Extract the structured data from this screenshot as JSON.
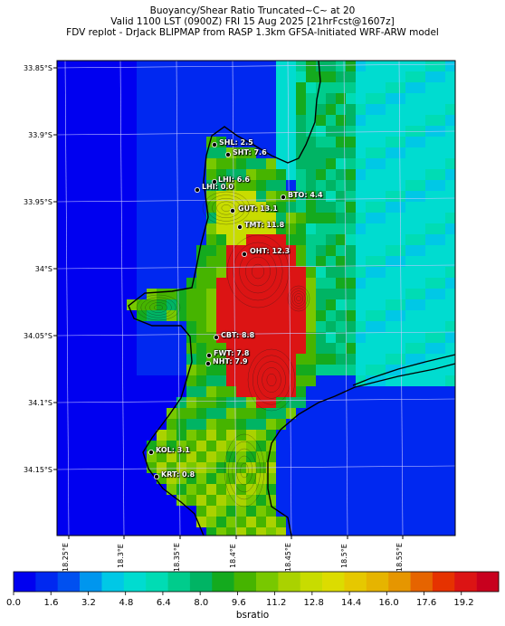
{
  "header": {
    "line1": "Buoyancy/Shear Ratio Truncated~C~    at 20",
    "line2": "Valid 1100 LST (0900Z) FRI 15 Aug 2025 [21hrFcst@1607z]",
    "line3": "FDV replot - DrJack BLIPMAP from RASP 1.3km GFSA-Initiated WRF-ARW model"
  },
  "axes": {
    "lat_ticks": [
      "33.85°S",
      "33.9°S",
      "33.95°S",
      "34°S",
      "34.05°S",
      "34.1°S",
      "34.15°S"
    ],
    "lon_ticks": [
      "18.25°E",
      "18.3°E",
      "18.35°E",
      "18.4°E",
      "18.45°E",
      "18.5°E",
      "18.55°E"
    ],
    "grid": true
  },
  "stations": [
    {
      "name": "SHL",
      "label": "SHL: 2.5",
      "value": 2.5
    },
    {
      "name": "SHT",
      "label": "SHT: 7.6",
      "value": 7.6
    },
    {
      "name": "LHI",
      "label": "LHI: 6.6",
      "value": 6.6
    },
    {
      "name": "LHI2",
      "label": "LHI: 0.0",
      "value": 0.0
    },
    {
      "name": "BTO",
      "label": "BTO: 4.4",
      "value": 4.4
    },
    {
      "name": "GUT",
      "label": "GUT: 13.1",
      "value": 13.1
    },
    {
      "name": "TMT",
      "label": "TMT: 11.8",
      "value": 11.8
    },
    {
      "name": "OHT",
      "label": "OHT: 12.3",
      "value": 12.3
    },
    {
      "name": "CBT",
      "label": "CBT: 8.8",
      "value": 8.8
    },
    {
      "name": "FWT",
      "label": "FWT: 7.8",
      "value": 7.8
    },
    {
      "name": "NHT",
      "label": "NHT: 7.9",
      "value": 7.9
    },
    {
      "name": "KOL",
      "label": "KOL: 3.1",
      "value": 3.1
    },
    {
      "name": "KRT",
      "label": "KRT: 0.8",
      "value": 0.8
    }
  ],
  "colorbar": {
    "label": "bsratio",
    "ticks": [
      "0.0",
      "1.6",
      "3.2",
      "4.8",
      "6.4",
      "8.0",
      "9.6",
      "11.2",
      "12.8",
      "14.4",
      "16.0",
      "17.6",
      "19.2"
    ],
    "min": 0,
    "max": 20.8,
    "colors": [
      "#0000f0",
      "#0028f0",
      "#0050f0",
      "#0096ee",
      "#00c8e6",
      "#00dcd0",
      "#00dcb4",
      "#00cc8c",
      "#00b464",
      "#14aa1e",
      "#46b400",
      "#78c800",
      "#aad200",
      "#c8dc00",
      "#dcdc00",
      "#e6c800",
      "#e6b400",
      "#e69600",
      "#e66400",
      "#e63200",
      "#dc1414",
      "#c8001e"
    ]
  }
}
